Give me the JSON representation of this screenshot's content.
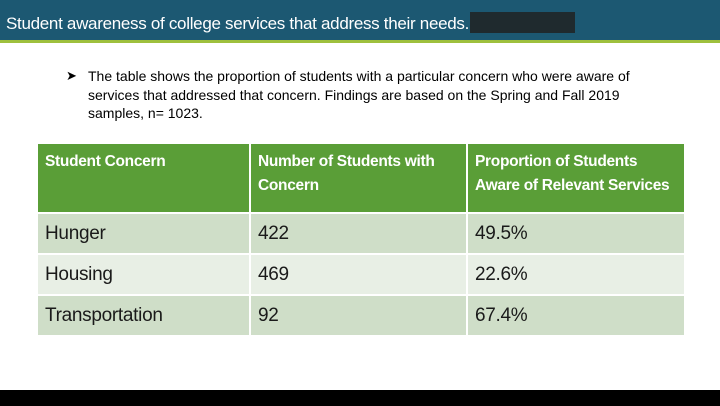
{
  "header": {
    "title": "Student awareness of college services that address their needs."
  },
  "intro": {
    "bullet_icon": "arrow-bullet-icon",
    "text": "The table shows the proportion of students with a particular concern who were aware of services that addressed that concern.  Findings are based on the Spring and Fall 2019 samples, n= 1023."
  },
  "table": {
    "headers": [
      "Student Concern",
      "Number of Students with Concern",
      "Proportion of Students Aware of Relevant Services"
    ],
    "rows": [
      [
        "Hunger",
        "422",
        "49.5%"
      ],
      [
        "Housing",
        "469",
        "22.6%"
      ],
      [
        "Transportation",
        "92",
        "67.4%"
      ]
    ]
  },
  "colors": {
    "header_bar": "#1c5872",
    "accent_rule": "#9ec03d",
    "table_header": "#5a9e37",
    "row_dark": "#cfdec8",
    "row_light": "#e8efe5"
  }
}
